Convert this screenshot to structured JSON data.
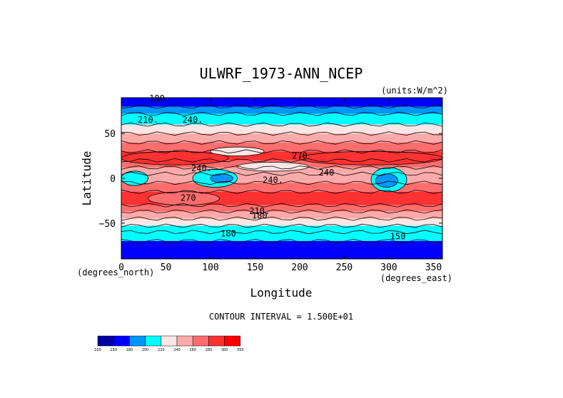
{
  "chart_data": {
    "type": "heatmap",
    "title": "ULWRF_1973-ANN_NCEP",
    "units_label": "(units:W/m^2)",
    "xlabel": "Longitude",
    "ylabel": "Latitude",
    "x_unit_label": "(degrees_east)",
    "y_unit_label": "(degrees_north)",
    "xlim": [
      0,
      360
    ],
    "ylim": [
      -90,
      90
    ],
    "x_ticks": [
      "0",
      "50",
      "100",
      "150",
      "200",
      "250",
      "300",
      "350"
    ],
    "x_tick_values": [
      0,
      50,
      100,
      150,
      200,
      250,
      300,
      350
    ],
    "y_ticks": [
      "50",
      "0",
      "−50"
    ],
    "y_tick_values": [
      50,
      0,
      -50
    ],
    "contour_interval_text": "CONTOUR INTERVAL = 1.500E+01",
    "contour_labels": [
      "180",
      "210.",
      "240.",
      "270",
      "240",
      "240.",
      "270",
      "240.",
      "210.",
      "180",
      "180",
      "150"
    ],
    "colorbar": {
      "levels": [
        100,
        150,
        180,
        200,
        220,
        240,
        260,
        280,
        300,
        350
      ],
      "labels": [
        "100",
        "150",
        "180",
        "200",
        "220",
        "240",
        "260",
        "280",
        "300",
        "350"
      ],
      "colors": [
        "#0000a0",
        "#0000ff",
        "#0096ff",
        "#00ffff",
        "#ffe6e6",
        "#ffaaaa",
        "#ff6e6e",
        "#ff3232",
        "#ff0000"
      ]
    },
    "zonal_bands": [
      {
        "lat_from": 90,
        "lat_to": 80,
        "value": 165
      },
      {
        "lat_from": 80,
        "lat_to": 72,
        "value": 190
      },
      {
        "lat_from": 72,
        "lat_to": 60,
        "value": 210
      },
      {
        "lat_from": 60,
        "lat_to": 50,
        "value": 225
      },
      {
        "lat_from": 50,
        "lat_to": 40,
        "value": 240
      },
      {
        "lat_from": 40,
        "lat_to": 30,
        "value": 262
      },
      {
        "lat_from": 30,
        "lat_to": 20,
        "value": 285
      },
      {
        "lat_from": 20,
        "lat_to": 12,
        "value": 268
      },
      {
        "lat_from": 12,
        "lat_to": 5,
        "value": 248
      },
      {
        "lat_from": 5,
        "lat_to": -5,
        "value": 258
      },
      {
        "lat_from": -5,
        "lat_to": -15,
        "value": 272
      },
      {
        "lat_from": -15,
        "lat_to": -30,
        "value": 282
      },
      {
        "lat_from": -30,
        "lat_to": -37,
        "value": 262
      },
      {
        "lat_from": -37,
        "lat_to": -45,
        "value": 245
      },
      {
        "lat_from": -45,
        "lat_to": -53,
        "value": 228
      },
      {
        "lat_from": -53,
        "lat_to": -60,
        "value": 212
      },
      {
        "lat_from": -60,
        "lat_to": -70,
        "value": 200
      },
      {
        "lat_from": -70,
        "lat_to": -90,
        "value": 165
      }
    ],
    "regional_anomalies": [
      {
        "lon": [
          100,
          160
        ],
        "lat": [
          35,
          25
        ],
        "value": 222
      },
      {
        "lon": [
          80,
          130
        ],
        "lat": [
          10,
          -10
        ],
        "value": 210
      },
      {
        "lon": [
          100,
          125
        ],
        "lat": [
          5,
          -5
        ],
        "value": 190
      },
      {
        "lon": [
          280,
          320
        ],
        "lat": [
          12,
          -15
        ],
        "value": 205
      },
      {
        "lon": [
          285,
          310
        ],
        "lat": [
          5,
          -10
        ],
        "value": 185
      },
      {
        "lon": [
          0,
          30
        ],
        "lat": [
          8,
          -8
        ],
        "value": 210
      },
      {
        "lon": [
          130,
          210
        ],
        "lat": [
          18,
          8
        ],
        "value": 230
      },
      {
        "lon": [
          0,
          120
        ],
        "lat": [
          30,
          15
        ],
        "value": 290
      },
      {
        "lon": [
          200,
          360
        ],
        "lat": [
          30,
          15
        ],
        "value": 280
      },
      {
        "lon": [
          30,
          110
        ],
        "lat": [
          -15,
          -30
        ],
        "value": 275
      }
    ]
  }
}
